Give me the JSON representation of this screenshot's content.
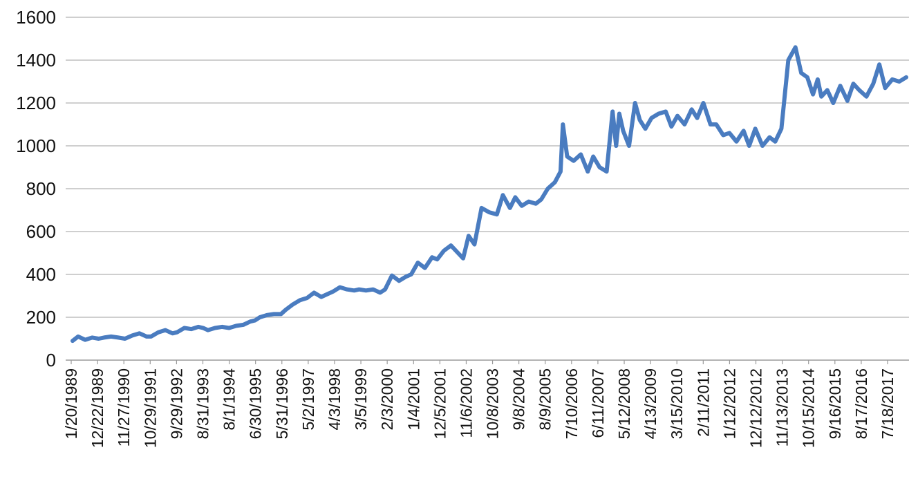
{
  "chart_data": {
    "type": "line",
    "title": "",
    "xlabel": "",
    "ylabel": "",
    "ylim": [
      0,
      1600
    ],
    "yticks": [
      0,
      200,
      400,
      600,
      800,
      1000,
      1200,
      1400,
      1600
    ],
    "grid": "horizontal",
    "legend": "none",
    "line_color": "#4a7cc0",
    "grid_color": "#bfbfbf",
    "x_tick_labels": [
      "1/20/1989",
      "12/22/1989",
      "11/27/1990",
      "10/29/1991",
      "9/29/1992",
      "8/31/1993",
      "8/1/1994",
      "6/30/1995",
      "5/31/1996",
      "5/2/1997",
      "4/3/1998",
      "3/5/1999",
      "2/3/2000",
      "1/4/2001",
      "12/5/2001",
      "11/6/2002",
      "10/8/2003",
      "9/8/2004",
      "8/9/2005",
      "7/10/2006",
      "6/11/2007",
      "5/12/2008",
      "4/13/2009",
      "3/15/2010",
      "2/11/2011",
      "1/12/2012",
      "12/12/2012",
      "11/13/2013",
      "10/15/2014",
      "9/16/2015",
      "8/17/2016",
      "7/18/2017"
    ],
    "series": [
      {
        "x": [
          "1989-01-20",
          "1989-04-01",
          "1989-07-01",
          "1989-10-01",
          "1989-12-22",
          "1990-03-01",
          "1990-06-01",
          "1990-09-01",
          "1990-11-27",
          "1991-03-01",
          "1991-06-01",
          "1991-09-01",
          "1991-10-29",
          "1992-02-01",
          "1992-05-01",
          "1992-08-01",
          "1992-09-29",
          "1993-01-01",
          "1993-04-01",
          "1993-07-01",
          "1993-08-31",
          "1993-11-01",
          "1994-02-01",
          "1994-05-01",
          "1994-08-01",
          "1994-11-01",
          "1995-02-01",
          "1995-05-01",
          "1995-06-30",
          "1995-09-01",
          "1995-12-01",
          "1996-03-01",
          "1996-05-31",
          "1996-08-01",
          "1996-11-01",
          "1997-02-01",
          "1997-05-02",
          "1997-08-01",
          "1997-11-01",
          "1998-02-01",
          "1998-04-03",
          "1998-07-01",
          "1998-10-01",
          "1999-01-01",
          "1999-03-05",
          "1999-06-01",
          "1999-09-01",
          "1999-12-01",
          "2000-02-03",
          "2000-05-01",
          "2000-08-01",
          "2000-11-01",
          "2001-01-04",
          "2001-04-01",
          "2001-07-01",
          "2001-10-01",
          "2001-12-05",
          "2002-03-01",
          "2002-06-01",
          "2002-09-01",
          "2002-11-06",
          "2003-01-15",
          "2003-04-01",
          "2003-07-01",
          "2003-10-08",
          "2004-01-15",
          "2004-04-01",
          "2004-07-01",
          "2004-09-08",
          "2004-12-01",
          "2005-03-01",
          "2005-06-01",
          "2005-08-09",
          "2005-11-01",
          "2006-02-01",
          "2006-04-15",
          "2006-05-15",
          "2006-07-10",
          "2006-10-01",
          "2007-01-01",
          "2007-04-01",
          "2007-06-11",
          "2007-09-01",
          "2007-12-01",
          "2008-02-15",
          "2008-04-01",
          "2008-05-12",
          "2008-07-01",
          "2008-09-15",
          "2008-12-01",
          "2009-02-01",
          "2009-04-13",
          "2009-07-01",
          "2009-10-01",
          "2010-01-01",
          "2010-03-15",
          "2010-06-01",
          "2010-09-01",
          "2010-12-01",
          "2011-02-11",
          "2011-05-01",
          "2011-08-01",
          "2011-10-15",
          "2012-01-12",
          "2012-04-01",
          "2012-07-01",
          "2012-10-01",
          "2012-12-12",
          "2013-03-01",
          "2013-06-01",
          "2013-09-01",
          "2013-11-13",
          "2014-02-01",
          "2014-05-01",
          "2014-08-01",
          "2014-10-15",
          "2015-01-01",
          "2015-03-15",
          "2015-05-15",
          "2015-07-01",
          "2015-09-16",
          "2015-12-01",
          "2016-03-01",
          "2016-06-01",
          "2016-08-17",
          "2016-11-01",
          "2017-02-01",
          "2017-05-01",
          "2017-07-18",
          "2017-10-01",
          "2018-01-01",
          "2018-04-01",
          "2018-06-30"
        ],
        "values": [
          90,
          110,
          95,
          105,
          100,
          105,
          110,
          105,
          100,
          115,
          125,
          110,
          110,
          130,
          140,
          125,
          130,
          150,
          145,
          155,
          150,
          140,
          150,
          155,
          150,
          160,
          165,
          180,
          185,
          200,
          210,
          215,
          215,
          235,
          260,
          280,
          290,
          315,
          295,
          310,
          320,
          340,
          330,
          325,
          330,
          325,
          330,
          315,
          330,
          395,
          370,
          390,
          400,
          455,
          430,
          480,
          470,
          510,
          535,
          500,
          475,
          580,
          540,
          710,
          690,
          680,
          770,
          710,
          760,
          720,
          740,
          730,
          750,
          800,
          830,
          880,
          1100,
          950,
          930,
          960,
          880,
          950,
          900,
          880,
          1160,
          1000,
          1150,
          1070,
          1000,
          1200,
          1120,
          1080,
          1130,
          1150,
          1160,
          1090,
          1140,
          1100,
          1170,
          1130,
          1200,
          1100,
          1100,
          1050,
          1060,
          1020,
          1070,
          1000,
          1080,
          1000,
          1040,
          1020,
          1080,
          1400,
          1460,
          1340,
          1320,
          1240,
          1310,
          1230,
          1260,
          1200,
          1280,
          1210,
          1290,
          1260,
          1230,
          1290,
          1380,
          1270,
          1310,
          1300,
          1320
        ]
      }
    ]
  }
}
